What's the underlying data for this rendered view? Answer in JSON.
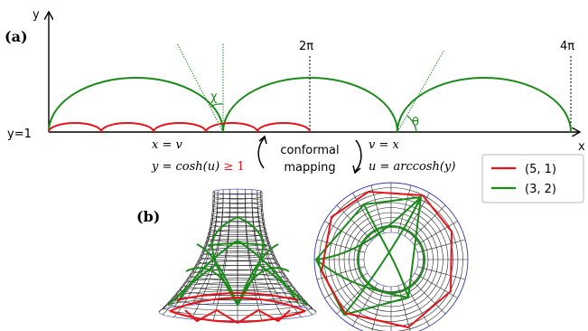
{
  "panel_a": {
    "label": "(a)",
    "y_axis": "y",
    "x_axis": "x",
    "y_one": "y=1",
    "tick_2pi": "2π",
    "tick_4pi": "4π",
    "chi": "χ",
    "theta": "θ"
  },
  "mapping": {
    "left_line1": "x = v",
    "left_line2_prefix": "y = cosh(u) ",
    "left_line2_red": "≥ 1",
    "center_line1": "conformal",
    "center_line2": "mapping",
    "right_line1": "v = x",
    "right_line2": "u = arccosh(y)"
  },
  "legend": {
    "items": [
      {
        "label": "(5, 1)",
        "color": "#e8141c"
      },
      {
        "label": "(3, 2)",
        "color": "#1a8a1a"
      }
    ]
  },
  "panel_b": {
    "label": "(b)"
  },
  "colors": {
    "red": "#e8141c",
    "green": "#1a8a1a",
    "mesh": "#222222",
    "mesh_blue": "#3a3aa8"
  }
}
